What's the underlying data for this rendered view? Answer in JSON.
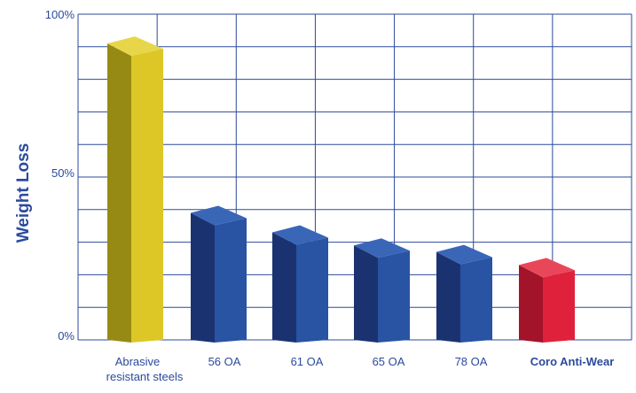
{
  "chart_data": {
    "type": "bar",
    "title": "",
    "xlabel": "",
    "ylabel": "Weight Loss",
    "ylim": [
      0,
      100
    ],
    "yticks": [
      0,
      50,
      100
    ],
    "ytick_labels": [
      "0%",
      "50%",
      "100%"
    ],
    "grid": true,
    "categories": [
      "Abrasive resistant steels",
      "56 OA",
      "61 OA",
      "65 OA",
      "78 OA",
      "Coro Anti-Wear"
    ],
    "category_lines": [
      [
        "Abrasive",
        "resistant steels"
      ],
      [
        "56 OA"
      ],
      [
        "61 OA"
      ],
      [
        "65 OA"
      ],
      [
        "78 OA"
      ],
      [
        "Coro Anti-Wear"
      ]
    ],
    "values": [
      91,
      39,
      33,
      29,
      27,
      23
    ],
    "colors": {
      "front": [
        "#dcc726",
        "#2953a3",
        "#2953a3",
        "#2953a3",
        "#2953a3",
        "#e0213b"
      ],
      "side": [
        "#978a14",
        "#1a3370",
        "#1a3370",
        "#1a3370",
        "#1a3370",
        "#a3132a"
      ],
      "top": [
        "#e8d64a",
        "#3a66b8",
        "#3a66b8",
        "#3a66b8",
        "#3a66b8",
        "#e8475a"
      ],
      "grid": "#2b4a9c",
      "text": "#2b4a9c"
    },
    "highlight_index": 5
  }
}
